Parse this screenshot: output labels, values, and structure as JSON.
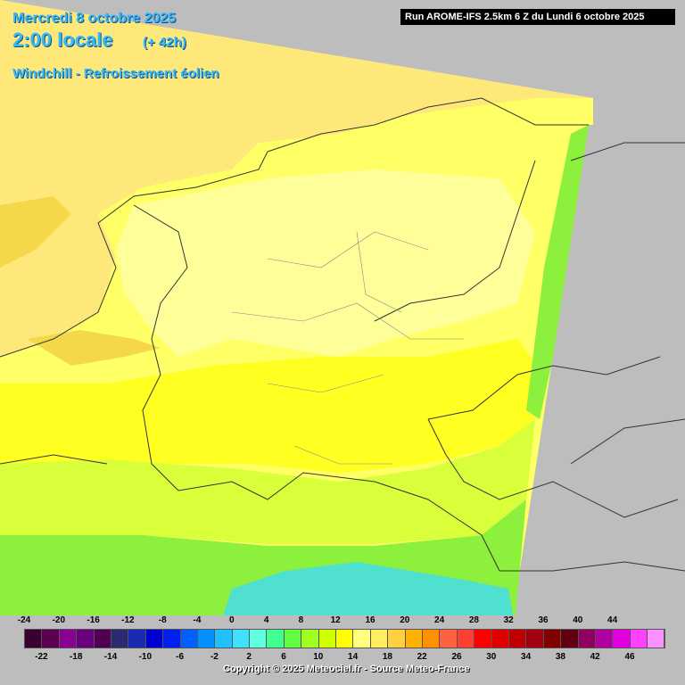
{
  "header": {
    "date": "Mercredi 8 octobre 2025",
    "time": "2:00 locale",
    "lead": "(+ 42h)",
    "product": "Windchill - Refroissement éolien"
  },
  "run_label": "Run AROME-IFS 2.5km 6 Z du Lundi 6 octobre 2025",
  "legend": {
    "top_ticks": [
      "-24",
      "-20",
      "-16",
      "-12",
      "-8",
      "-4",
      "0",
      "4",
      "8",
      "12",
      "16",
      "20",
      "24",
      "28",
      "32",
      "36",
      "40",
      "44"
    ],
    "bottom_ticks": [
      "-22",
      "-18",
      "-14",
      "-10",
      "-6",
      "-2",
      "2",
      "6",
      "10",
      "14",
      "18",
      "22",
      "26",
      "30",
      "34",
      "38",
      "42",
      "46"
    ],
    "colors": [
      "#3a0030",
      "#5a0050",
      "#8a0090",
      "#6a0080",
      "#500050",
      "#2a2a70",
      "#1a2ab0",
      "#0000d0",
      "#0020f0",
      "#0060ff",
      "#0090ff",
      "#20c0ff",
      "#40e0ff",
      "#60ffe0",
      "#40ff90",
      "#60ff40",
      "#a0ff20",
      "#d0ff00",
      "#ffff00",
      "#ffff80",
      "#ffee60",
      "#ffd040",
      "#ffb000",
      "#ff9000",
      "#ff6040",
      "#ff4030",
      "#ff0000",
      "#e00000",
      "#c00000",
      "#a00010",
      "#800000",
      "#600010",
      "#900060",
      "#b000a0",
      "#e000e0",
      "#ff40ff",
      "#ff90ff"
    ]
  },
  "map_colors": {
    "land_outside": "#bdbdbd",
    "very_warm": "#f5d84a",
    "warm": "#ffe87a",
    "pale": "#ffff99",
    "yellow": "#ffff33",
    "lime": "#d8ff3a",
    "green": "#8cf03c",
    "cyan": "#4fe0d0"
  },
  "copyright": "Copyright © 2025 Meteociel.fr - Source Meteo-France"
}
